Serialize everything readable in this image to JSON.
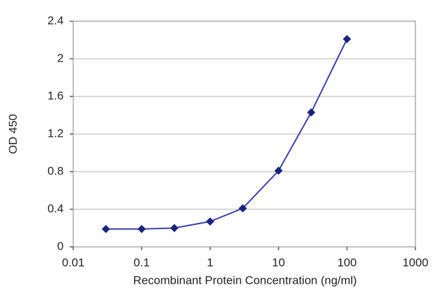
{
  "chart_data": {
    "type": "line",
    "x_label": "Recombinant Protein Concentration (ng/ml)",
    "y_label": "OD 450",
    "x": [
      0.03,
      0.1,
      0.3,
      1,
      3,
      10,
      30,
      100
    ],
    "values": [
      0.19,
      0.19,
      0.2,
      0.27,
      0.41,
      0.81,
      1.43,
      2.21
    ],
    "color": "#3a3fa8",
    "marker_color": "#1a237e",
    "xscale": "log",
    "xlim": [
      0.01,
      1000
    ],
    "xticks": [
      0.01,
      0.1,
      1,
      10,
      100,
      1000
    ],
    "ylim": [
      0,
      2.4
    ],
    "yticks": [
      0,
      0.4,
      0.8,
      1.2,
      1.6,
      2,
      2.4
    ],
    "grid": true
  }
}
